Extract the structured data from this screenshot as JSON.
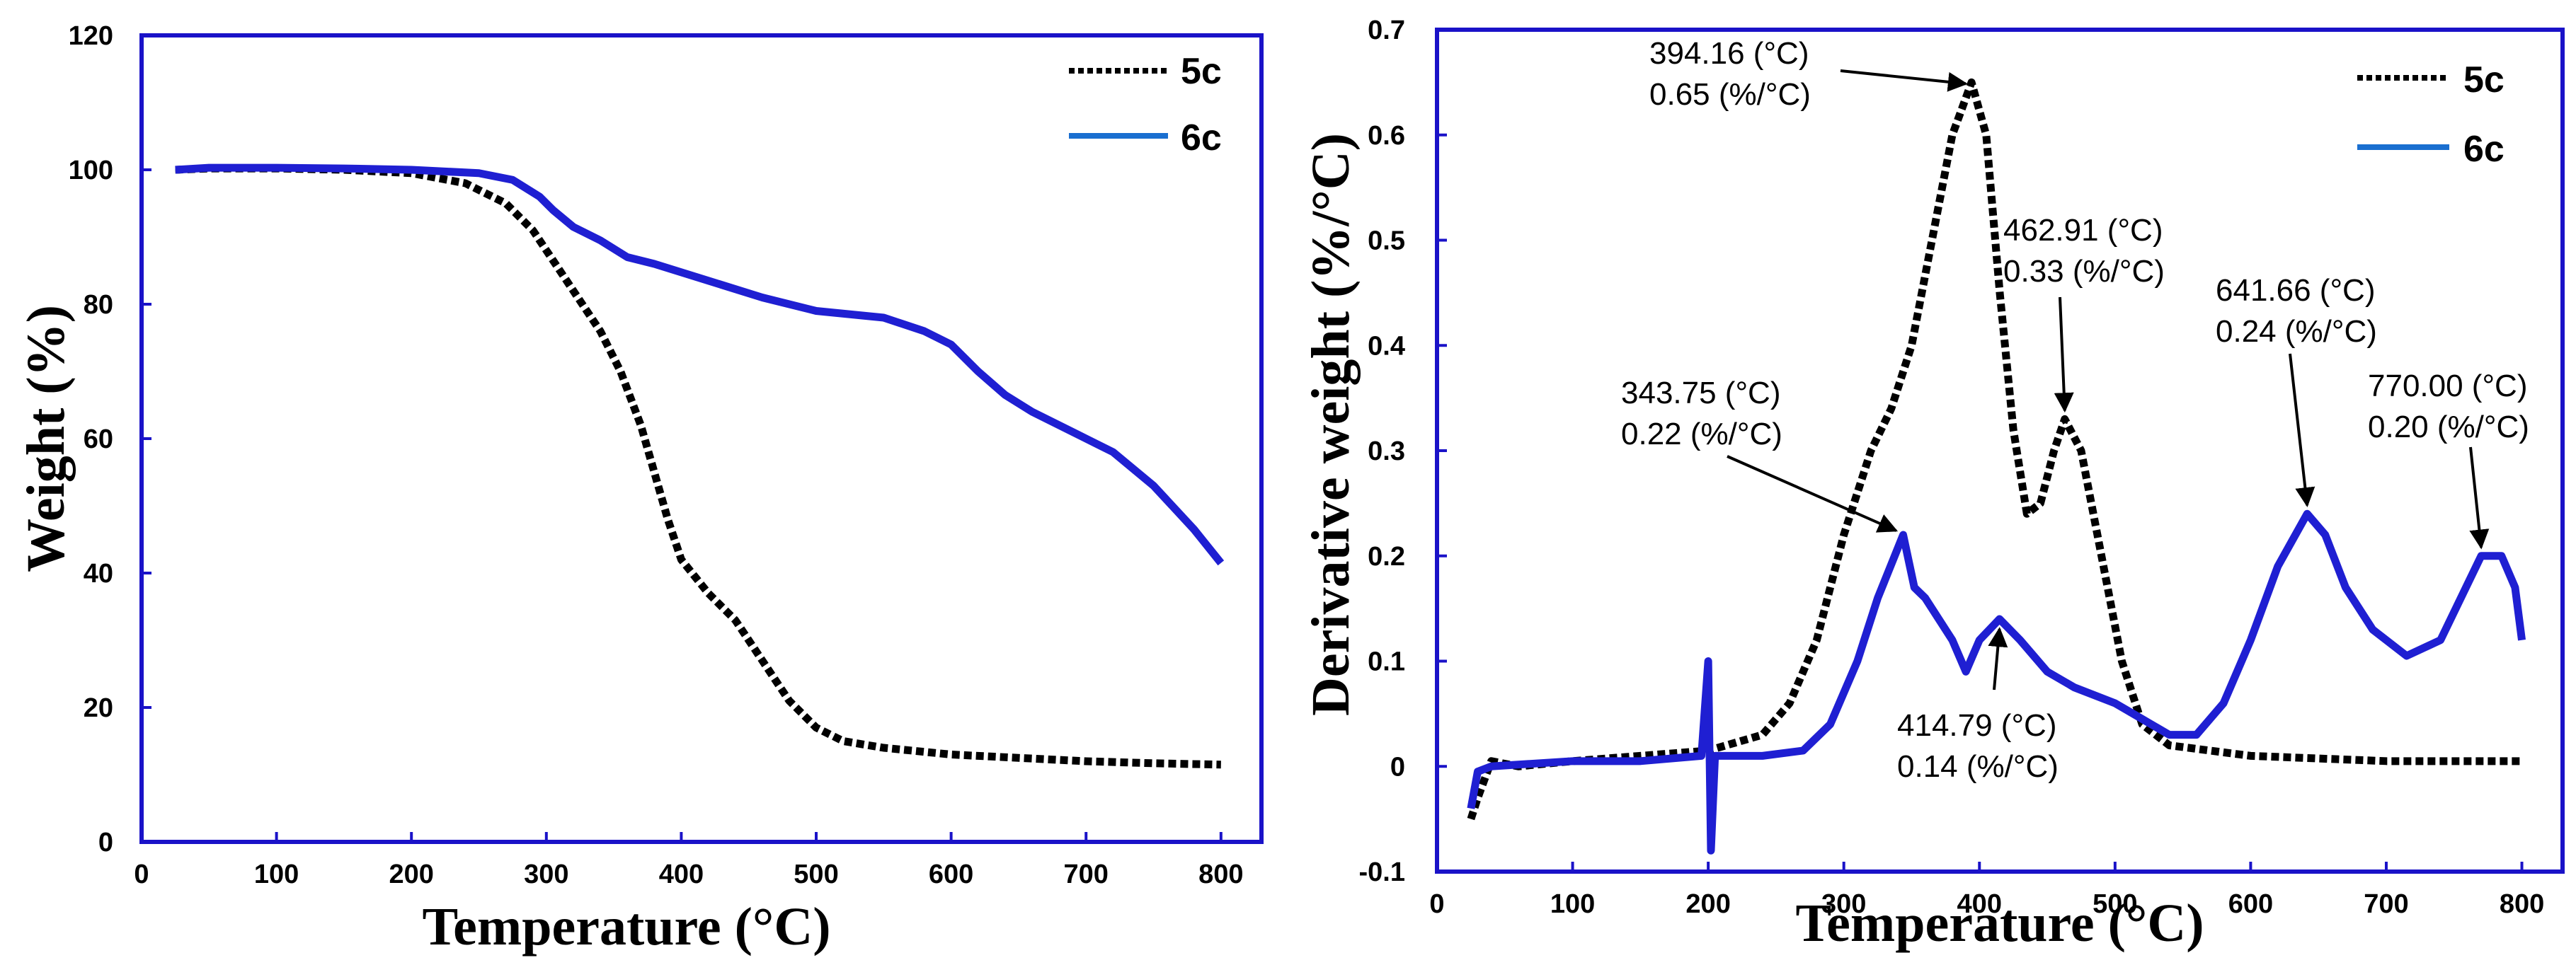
{
  "chart_data": [
    {
      "type": "line",
      "title": "",
      "xlabel": "Temperature (°C)",
      "ylabel": "Weight (%)",
      "xlim": [
        0,
        830
      ],
      "ylim": [
        0,
        120
      ],
      "xticks": [
        0,
        100,
        200,
        300,
        400,
        500,
        600,
        700,
        800
      ],
      "yticks": [
        0,
        20,
        40,
        60,
        80,
        100,
        120
      ],
      "xtick_labels": [
        "0",
        "100",
        "200",
        "300",
        "400",
        "500",
        "600",
        "700",
        "800"
      ],
      "ytick_labels": [
        "0",
        "20",
        "40",
        "60",
        "80",
        "100",
        "120"
      ],
      "grid": false,
      "legend": "top-right",
      "series": [
        {
          "name": "5c",
          "color": "#000000",
          "style": "dotted",
          "points": [
            [
              25,
              100
            ],
            [
              50,
              100.2
            ],
            [
              100,
              100.2
            ],
            [
              150,
              100
            ],
            [
              200,
              99.5
            ],
            [
              240,
              98
            ],
            [
              270,
              95
            ],
            [
              290,
              91
            ],
            [
              300,
              88
            ],
            [
              320,
              82
            ],
            [
              340,
              76
            ],
            [
              355,
              70
            ],
            [
              370,
              62
            ],
            [
              380,
              55
            ],
            [
              390,
              48
            ],
            [
              400,
              42
            ],
            [
              420,
              37
            ],
            [
              440,
              33
            ],
            [
              460,
              27
            ],
            [
              480,
              21
            ],
            [
              500,
              17
            ],
            [
              520,
              15
            ],
            [
              550,
              14
            ],
            [
              600,
              13
            ],
            [
              650,
              12.5
            ],
            [
              700,
              12
            ],
            [
              750,
              11.7
            ],
            [
              800,
              11.5
            ]
          ]
        },
        {
          "name": "6c",
          "color": "#1f1fd2",
          "style": "solid",
          "points": [
            [
              25,
              100
            ],
            [
              50,
              100.3
            ],
            [
              100,
              100.3
            ],
            [
              150,
              100.2
            ],
            [
              200,
              100
            ],
            [
              250,
              99.5
            ],
            [
              275,
              98.5
            ],
            [
              295,
              96
            ],
            [
              305,
              94
            ],
            [
              320,
              91.5
            ],
            [
              340,
              89.5
            ],
            [
              360,
              87
            ],
            [
              380,
              86
            ],
            [
              420,
              83.5
            ],
            [
              460,
              81
            ],
            [
              500,
              79
            ],
            [
              550,
              78
            ],
            [
              580,
              76
            ],
            [
              600,
              74
            ],
            [
              620,
              70
            ],
            [
              640,
              66.5
            ],
            [
              660,
              64
            ],
            [
              700,
              60
            ],
            [
              720,
              58
            ],
            [
              750,
              53
            ],
            [
              780,
              46.5
            ],
            [
              800,
              41.5
            ]
          ]
        }
      ]
    },
    {
      "type": "line",
      "title": "",
      "xlabel": "Temperature (°C)",
      "ylabel": "Derivative weight (%/°C)",
      "xlim": [
        0,
        830
      ],
      "ylim": [
        -0.1,
        0.7
      ],
      "xticks": [
        0,
        100,
        200,
        300,
        400,
        500,
        600,
        700,
        800
      ],
      "yticks": [
        -0.1,
        0,
        0.1,
        0.2,
        0.3,
        0.4,
        0.5,
        0.6,
        0.7
      ],
      "xtick_labels": [
        "0",
        "100",
        "200",
        "300",
        "400",
        "500",
        "600",
        "700",
        "800"
      ],
      "ytick_labels": [
        "-0.1",
        "0",
        "0.1",
        "0.2",
        "0.3",
        "0.4",
        "0.5",
        "0.6",
        "0.7"
      ],
      "grid": false,
      "legend": "top-right",
      "series": [
        {
          "name": "5c",
          "color": "#000000",
          "style": "dotted",
          "points": [
            [
              25,
              -0.05
            ],
            [
              30,
              -0.03
            ],
            [
              40,
              0.005
            ],
            [
              60,
              0.0
            ],
            [
              100,
              0.005
            ],
            [
              150,
              0.01
            ],
            [
              200,
              0.015
            ],
            [
              240,
              0.03
            ],
            [
              260,
              0.06
            ],
            [
              280,
              0.12
            ],
            [
              300,
              0.22
            ],
            [
              320,
              0.3
            ],
            [
              335,
              0.34
            ],
            [
              350,
              0.4
            ],
            [
              365,
              0.5
            ],
            [
              380,
              0.6
            ],
            [
              394.16,
              0.65
            ],
            [
              405,
              0.6
            ],
            [
              415,
              0.45
            ],
            [
              425,
              0.32
            ],
            [
              435,
              0.24
            ],
            [
              445,
              0.25
            ],
            [
              455,
              0.3
            ],
            [
              462.91,
              0.33
            ],
            [
              475,
              0.3
            ],
            [
              490,
              0.2
            ],
            [
              505,
              0.1
            ],
            [
              520,
              0.04
            ],
            [
              540,
              0.02
            ],
            [
              600,
              0.01
            ],
            [
              700,
              0.005
            ],
            [
              800,
              0.005
            ]
          ]
        },
        {
          "name": "6c",
          "color": "#1f1fd2",
          "style": "solid",
          "points": [
            [
              25,
              -0.04
            ],
            [
              30,
              -0.005
            ],
            [
              40,
              0.0
            ],
            [
              100,
              0.005
            ],
            [
              150,
              0.005
            ],
            [
              195,
              0.01
            ],
            [
              200,
              0.1
            ],
            [
              202,
              -0.08
            ],
            [
              205,
              0.01
            ],
            [
              240,
              0.01
            ],
            [
              270,
              0.015
            ],
            [
              290,
              0.04
            ],
            [
              310,
              0.1
            ],
            [
              325,
              0.16
            ],
            [
              343.75,
              0.22
            ],
            [
              352,
              0.17
            ],
            [
              360,
              0.16
            ],
            [
              370,
              0.14
            ],
            [
              380,
              0.12
            ],
            [
              390,
              0.09
            ],
            [
              400,
              0.12
            ],
            [
              414.79,
              0.14
            ],
            [
              430,
              0.12
            ],
            [
              450,
              0.09
            ],
            [
              470,
              0.075
            ],
            [
              500,
              0.06
            ],
            [
              520,
              0.045
            ],
            [
              540,
              0.03
            ],
            [
              560,
              0.03
            ],
            [
              580,
              0.06
            ],
            [
              600,
              0.12
            ],
            [
              620,
              0.19
            ],
            [
              641.66,
              0.24
            ],
            [
              655,
              0.22
            ],
            [
              670,
              0.17
            ],
            [
              690,
              0.13
            ],
            [
              715,
              0.105
            ],
            [
              740,
              0.12
            ],
            [
              755,
              0.16
            ],
            [
              770,
              0.2
            ],
            [
              785,
              0.2
            ],
            [
              795,
              0.17
            ],
            [
              800,
              0.12
            ]
          ]
        }
      ],
      "annotations": [
        {
          "line1": "394.16 (°C)",
          "line2": "0.65 (%/°C)",
          "x": 394.16,
          "y": 0.65
        },
        {
          "line1": "462.91 (°C)",
          "line2": "0.33 (%/°C)",
          "x": 462.91,
          "y": 0.33
        },
        {
          "line1": "343.75 (°C)",
          "line2": "0.22 (%/°C)",
          "x": 343.75,
          "y": 0.22
        },
        {
          "line1": "414.79 (°C)",
          "line2": "0.14 (%/°C)",
          "x": 414.79,
          "y": 0.14
        },
        {
          "line1": "641.66 (°C)",
          "line2": "0.24 (%/°C)",
          "x": 641.66,
          "y": 0.24
        },
        {
          "line1": "770.00 (°C)",
          "line2": "0.20 (%/°C)",
          "x": 770.0,
          "y": 0.2
        }
      ]
    }
  ]
}
